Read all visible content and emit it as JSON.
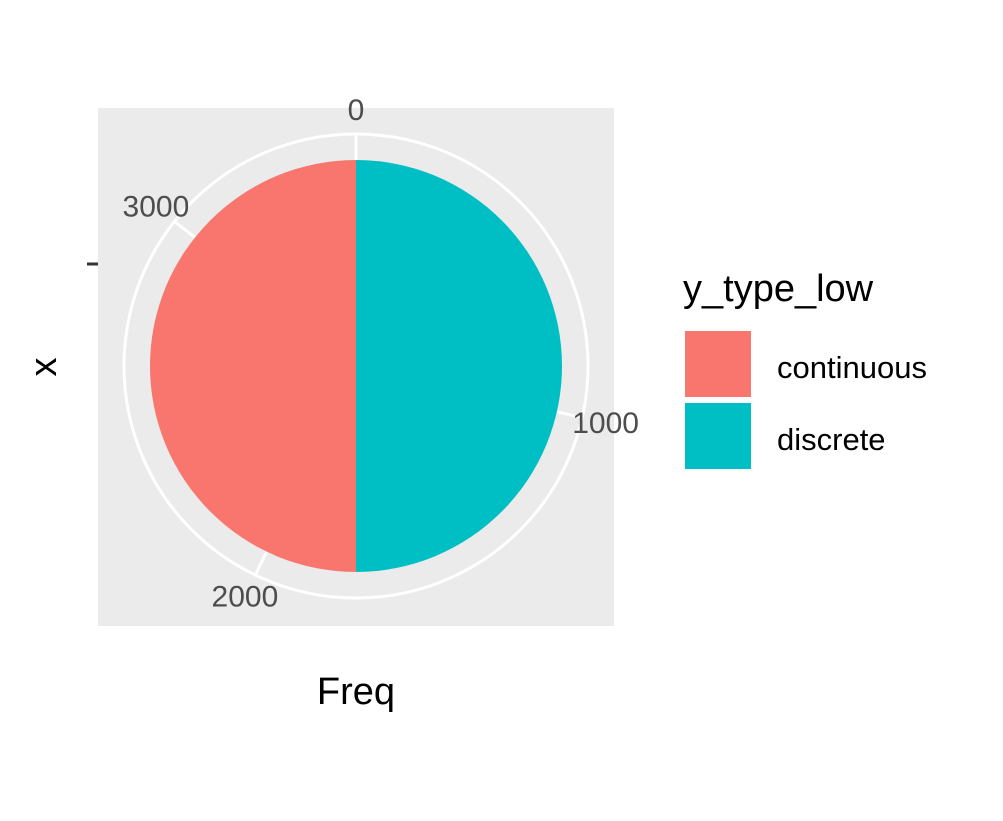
{
  "chart_data": {
    "type": "pie",
    "coord": "polar",
    "title": "",
    "xlabel": "Freq",
    "ylabel": "x",
    "y_ticks": [
      ""
    ],
    "categories": [
      "continuous",
      "discrete"
    ],
    "values": [
      1750,
      1750
    ],
    "theta_range": [
      0,
      3500
    ],
    "theta_ticks": [
      0,
      1000,
      2000,
      3000
    ],
    "theta_tick_labels": [
      "0",
      "1000",
      "2000",
      "3000"
    ],
    "grid": true,
    "legend": {
      "title": "y_type_low",
      "position": "right",
      "entries": [
        "continuous",
        "discrete"
      ]
    },
    "colors": {
      "continuous": "#F8766D",
      "discrete": "#00BFC4",
      "panel": "#EBEBEB",
      "grid": "#FFFFFF"
    }
  }
}
